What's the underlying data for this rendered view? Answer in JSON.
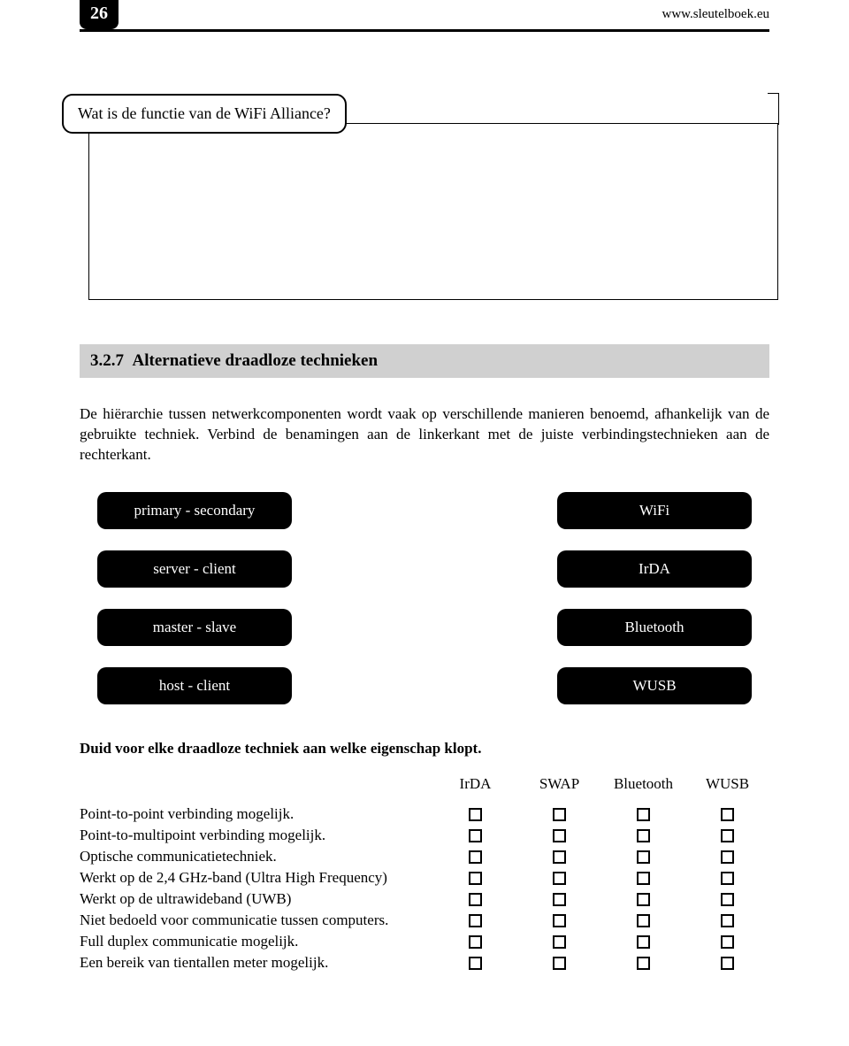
{
  "header": {
    "page_number": "26",
    "url": "www.sleutelboek.eu"
  },
  "question": {
    "text": "Wat is de functie van de WiFi Alliance?"
  },
  "section": {
    "number": "3.2.7",
    "title": "Alternatieve draadloze technieken"
  },
  "intro_text": "De hiërarchie tussen netwerkcomponenten wordt vaak op verschillende manieren benoemd, afhankelijk van de gebruikte techniek. Verbind de benamingen aan de linkerkant met de juiste verbindingstechnieken aan de rechterkant.",
  "matching": {
    "left": [
      "primary - secondary",
      "server - client",
      "master - slave",
      "host - client"
    ],
    "right": [
      "WiFi",
      "IrDA",
      "Bluetooth",
      "WUSB"
    ]
  },
  "instruction": "Duid voor elke draadloze techniek aan welke eigenschap klopt.",
  "checkbox_table": {
    "columns": [
      "IrDA",
      "SWAP",
      "Bluetooth",
      "WUSB"
    ],
    "rows": [
      "Point-to-point verbinding mogelijk.",
      "Point-to-multipoint verbinding mogelijk.",
      "Optische communicatietechniek.",
      "Werkt op de 2,4 GHz-band (Ultra High Frequency)",
      "Werkt op de ultrawideband (UWB)",
      "Niet bedoeld voor communicatie tussen computers.",
      "Full duplex communicatie mogelijk.",
      "Een bereik van tientallen meter mogelijk."
    ]
  },
  "colors": {
    "black": "#000000",
    "white": "#ffffff",
    "gray_bg": "#d0d0d0"
  }
}
